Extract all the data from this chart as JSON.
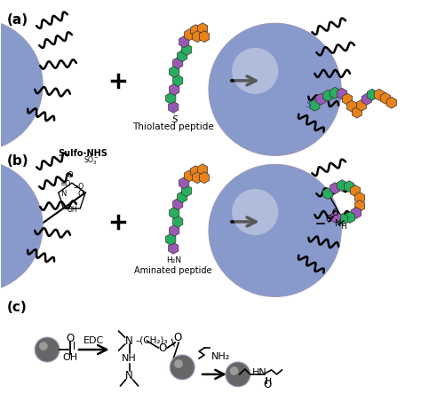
{
  "bg_color": "#ffffff",
  "label_a": "(a)",
  "label_b": "(b)",
  "label_c": "(c)",
  "thiolated_peptide": "Thiolated peptide",
  "aminated_peptide": "Aminated peptide",
  "sulfo_nhs": "Sulfo-NHS",
  "edc_label": "EDC",
  "orange_color": "#E8821A",
  "purple_color": "#9B59B6",
  "green_color": "#27AE60",
  "bead_color_light": "#8899CC",
  "bead_color_dark": "#555555",
  "np_edge_color": "#6677AA"
}
